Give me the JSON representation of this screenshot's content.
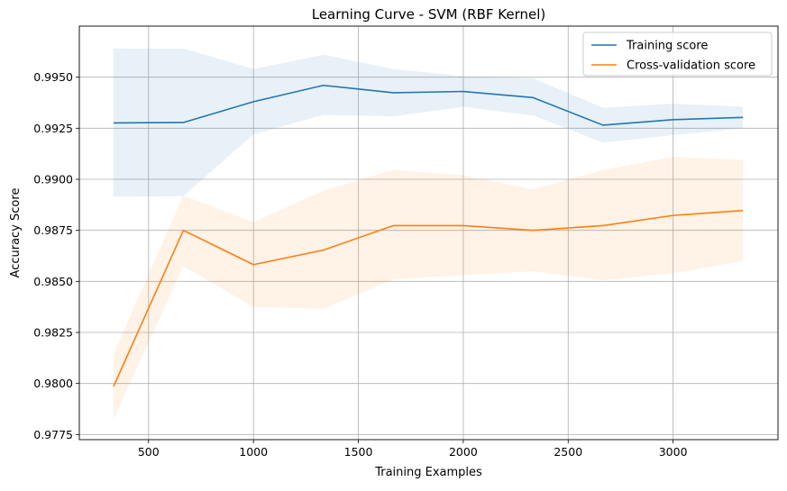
{
  "chart_data": {
    "type": "line",
    "title": "Learning Curve - SVM (RBF Kernel)",
    "xlabel": "Training Examples",
    "ylabel": "Accuracy Score",
    "xlim": [
      170,
      3500
    ],
    "ylim": [
      0.97725,
      0.9975
    ],
    "xticks": [
      500,
      1000,
      1500,
      2000,
      2500,
      3000
    ],
    "yticks": [
      0.9775,
      0.98,
      0.9825,
      0.985,
      0.9875,
      0.99,
      0.9925,
      0.995
    ],
    "grid": true,
    "legend_position": "upper right",
    "x": [
      333,
      666,
      1000,
      1333,
      1666,
      2000,
      2333,
      2666,
      3000,
      3333
    ],
    "series": [
      {
        "name": "Training score",
        "color": "#1f77b4",
        "band_color": "#1f77b4",
        "values": [
          0.99276,
          0.99278,
          0.9938,
          0.9946,
          0.99424,
          0.9943,
          0.994,
          0.99265,
          0.99292,
          0.99303
        ],
        "band_upper": [
          0.9964,
          0.9964,
          0.9954,
          0.9961,
          0.9954,
          0.99505,
          0.99495,
          0.9935,
          0.9937,
          0.99355
        ],
        "band_lower": [
          0.98915,
          0.98918,
          0.9922,
          0.99315,
          0.99308,
          0.99355,
          0.99312,
          0.9918,
          0.99216,
          0.9925
        ]
      },
      {
        "name": "Cross-validation score",
        "color": "#ff7f0e",
        "band_color": "#ff7f0e",
        "values": [
          0.97985,
          0.9875,
          0.98582,
          0.98653,
          0.98773,
          0.98773,
          0.9875,
          0.98773,
          0.98823,
          0.98847
        ],
        "band_upper": [
          0.98145,
          0.9892,
          0.9879,
          0.98945,
          0.99045,
          0.9902,
          0.9895,
          0.99045,
          0.9911,
          0.99095
        ],
        "band_lower": [
          0.97825,
          0.98575,
          0.98375,
          0.98365,
          0.9851,
          0.9853,
          0.9855,
          0.98505,
          0.9854,
          0.986
        ]
      }
    ]
  }
}
